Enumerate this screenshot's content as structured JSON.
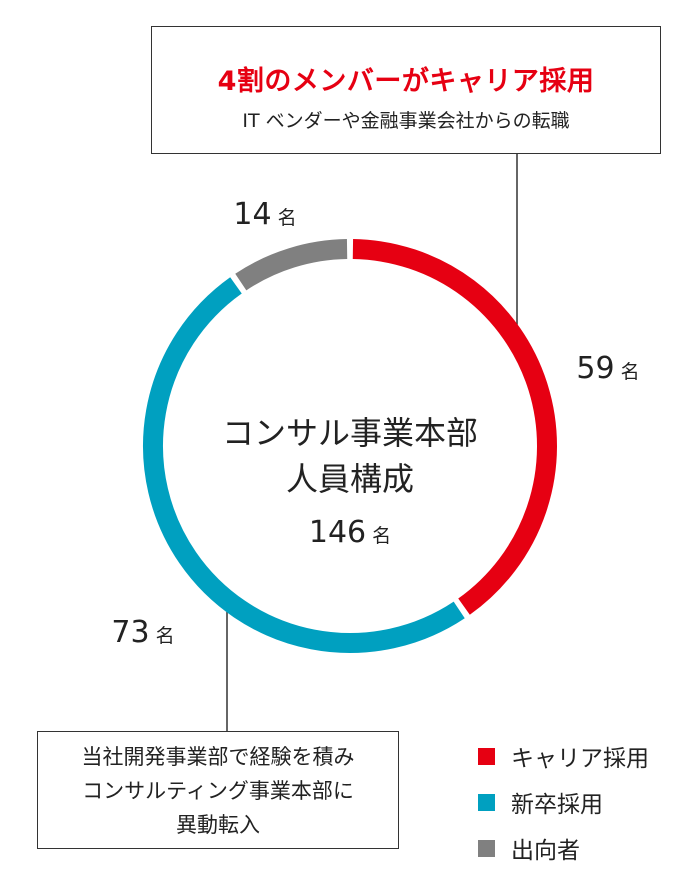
{
  "annotation_top": {
    "headline": "4割のメンバーがキャリア採用",
    "subtext": "IT ベンダーや金融事業会社からの転職"
  },
  "annotation_bottom": {
    "lines": [
      "当社開発事業部で経験を積み",
      "コンサルティング事業本部に",
      "異動転入"
    ]
  },
  "chart_data": {
    "type": "pie",
    "donut": true,
    "title_lines": [
      "コンサル事業本部",
      "人員構成"
    ],
    "total_value": "146",
    "unit": "名",
    "series": [
      {
        "name": "キャリア採用",
        "value": 59,
        "color": "#e60012"
      },
      {
        "name": "新卒採用",
        "value": 73,
        "color": "#00a0c0"
      },
      {
        "name": "出向者",
        "value": 14,
        "color": "#808080"
      }
    ]
  }
}
